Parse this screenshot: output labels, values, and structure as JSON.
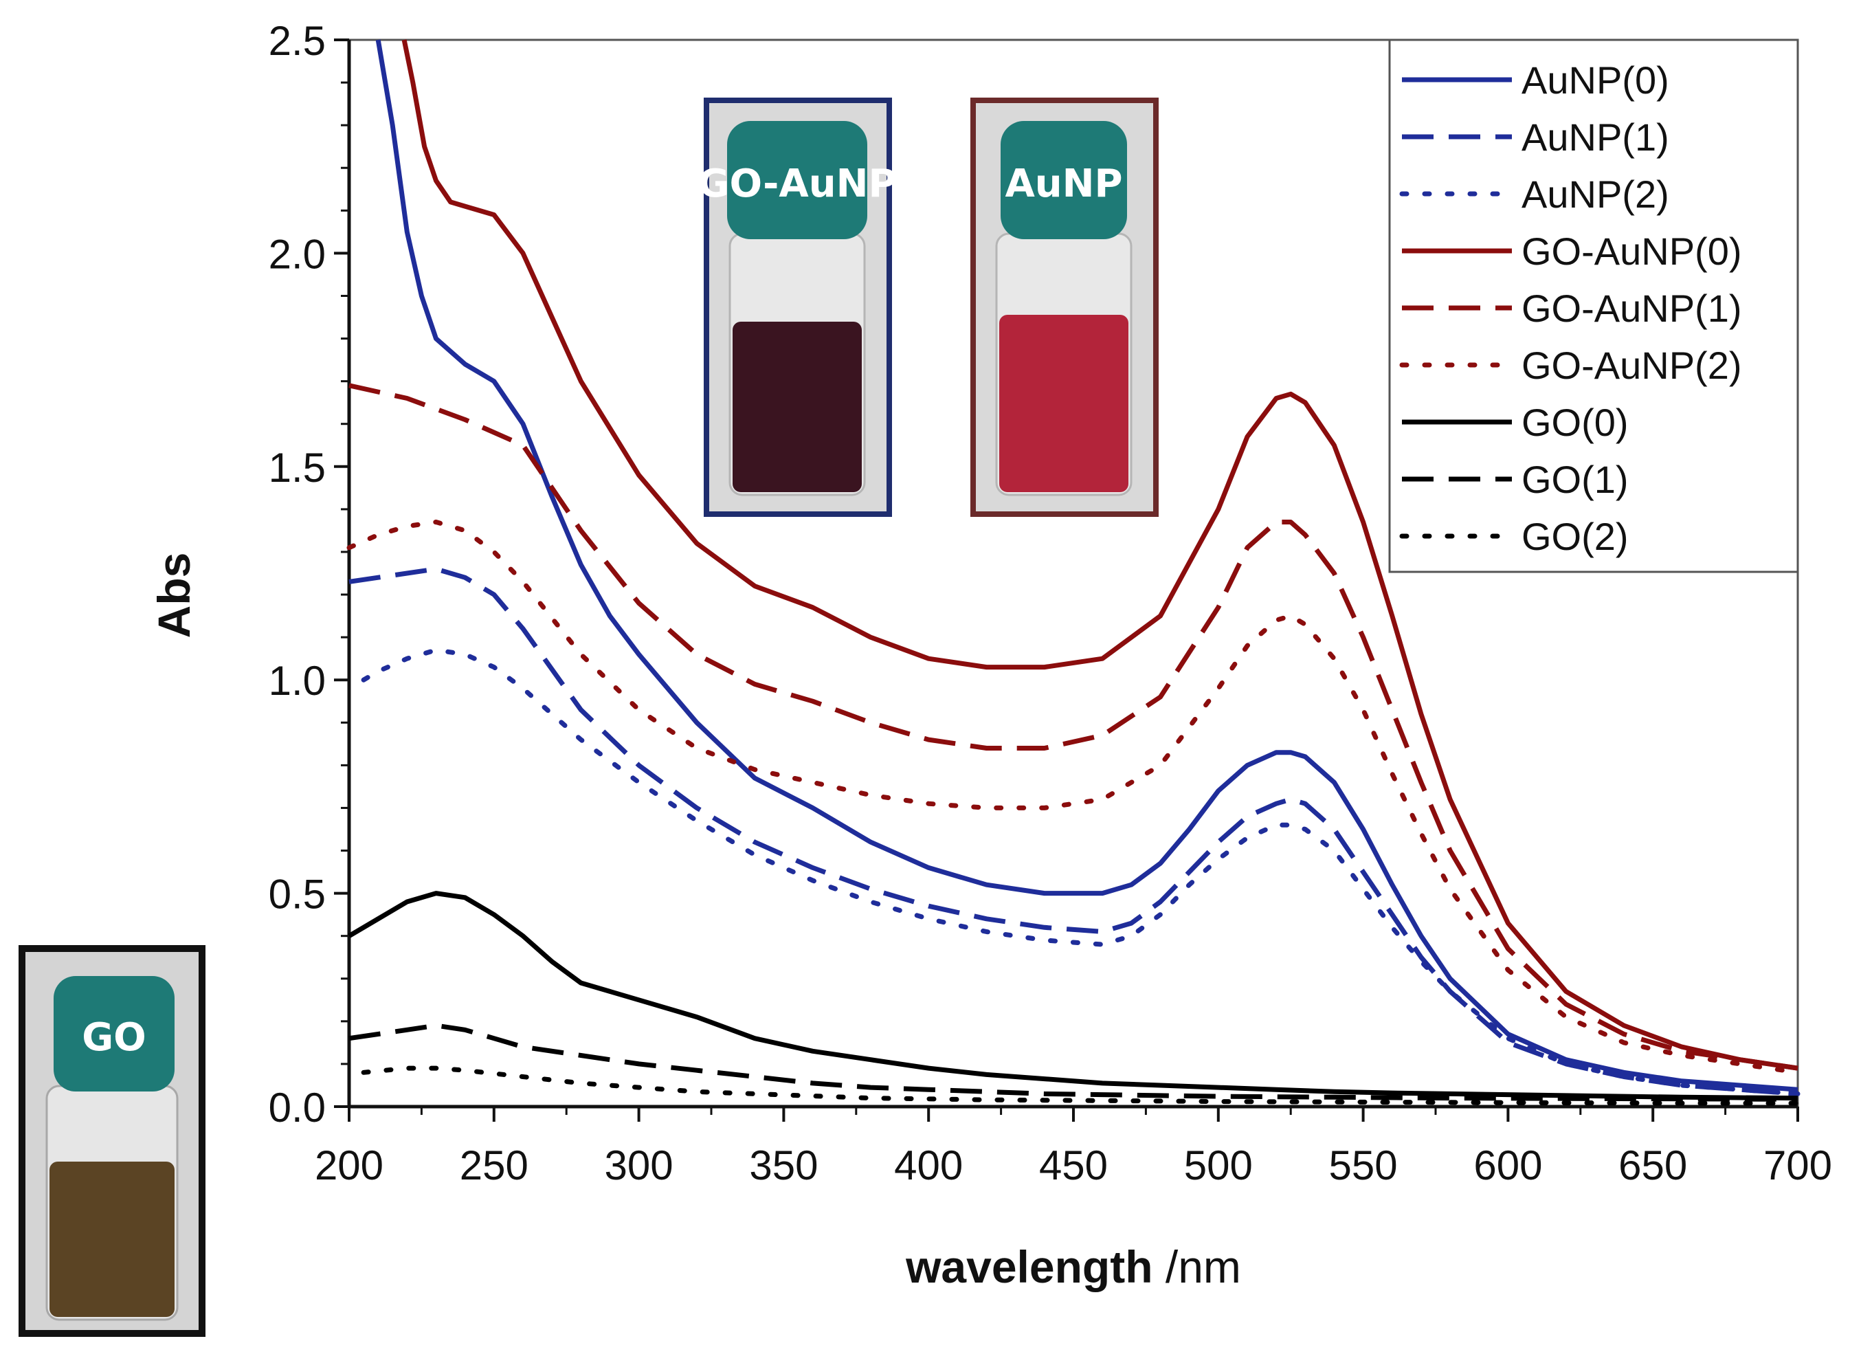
{
  "chart_data": {
    "type": "line",
    "title": "",
    "xlabel_bold": "wavelength",
    "xlabel_unit": " /nm",
    "ylabel": "Abs",
    "xlim": [
      200,
      700
    ],
    "ylim": [
      0,
      2.5
    ],
    "xticks": [
      "200",
      "250",
      "300",
      "350",
      "400",
      "450",
      "500",
      "550",
      "600",
      "650",
      "700"
    ],
    "yticks": [
      "0.0",
      "0.5",
      "1.0",
      "1.5",
      "2.0",
      "2.5"
    ],
    "legend_position": "top-right",
    "colors": {
      "blue": "#1f2d9a",
      "red": "#8b0d0d",
      "black": "#000000"
    },
    "series": [
      {
        "name": "AuNP(0)",
        "color": "#1f2d9a",
        "style": "solid",
        "x": [
          210,
          215,
          220,
          225,
          230,
          240,
          250,
          260,
          270,
          280,
          290,
          300,
          320,
          340,
          360,
          380,
          400,
          420,
          440,
          460,
          470,
          480,
          490,
          500,
          510,
          520,
          525,
          530,
          540,
          550,
          560,
          570,
          580,
          600,
          620,
          640,
          660,
          680,
          700
        ],
        "y": [
          2.5,
          2.3,
          2.05,
          1.9,
          1.8,
          1.74,
          1.7,
          1.6,
          1.43,
          1.27,
          1.15,
          1.06,
          0.9,
          0.77,
          0.7,
          0.62,
          0.56,
          0.52,
          0.5,
          0.5,
          0.52,
          0.57,
          0.65,
          0.74,
          0.8,
          0.83,
          0.83,
          0.82,
          0.76,
          0.65,
          0.52,
          0.4,
          0.3,
          0.17,
          0.11,
          0.08,
          0.06,
          0.05,
          0.04
        ]
      },
      {
        "name": "AuNP(1)",
        "color": "#1f2d9a",
        "style": "dash",
        "x": [
          200,
          210,
          220,
          230,
          240,
          250,
          260,
          280,
          300,
          320,
          340,
          360,
          380,
          400,
          420,
          440,
          460,
          470,
          480,
          490,
          500,
          510,
          520,
          525,
          530,
          540,
          550,
          560,
          570,
          580,
          600,
          620,
          640,
          660,
          680,
          700
        ],
        "y": [
          1.23,
          1.24,
          1.25,
          1.26,
          1.24,
          1.2,
          1.12,
          0.93,
          0.8,
          0.7,
          0.62,
          0.56,
          0.51,
          0.47,
          0.44,
          0.42,
          0.41,
          0.43,
          0.48,
          0.55,
          0.62,
          0.68,
          0.71,
          0.72,
          0.71,
          0.65,
          0.55,
          0.45,
          0.35,
          0.27,
          0.15,
          0.1,
          0.07,
          0.05,
          0.04,
          0.03
        ]
      },
      {
        "name": "AuNP(2)",
        "color": "#1f2d9a",
        "style": "dot",
        "x": [
          205,
          210,
          220,
          230,
          240,
          250,
          260,
          280,
          300,
          320,
          340,
          360,
          380,
          400,
          420,
          440,
          460,
          470,
          480,
          490,
          500,
          510,
          520,
          525,
          530,
          540,
          550,
          560,
          570,
          580,
          600,
          620,
          640,
          660,
          680,
          700
        ],
        "y": [
          1.0,
          1.02,
          1.05,
          1.07,
          1.06,
          1.03,
          0.98,
          0.86,
          0.76,
          0.67,
          0.59,
          0.53,
          0.48,
          0.44,
          0.41,
          0.39,
          0.38,
          0.4,
          0.45,
          0.52,
          0.58,
          0.63,
          0.66,
          0.66,
          0.65,
          0.6,
          0.51,
          0.42,
          0.34,
          0.27,
          0.16,
          0.1,
          0.07,
          0.05,
          0.04,
          0.03
        ]
      },
      {
        "name": "GO-AuNP(0)",
        "color": "#8b0d0d",
        "style": "solid",
        "x": [
          219,
          222,
          226,
          230,
          235,
          240,
          250,
          260,
          270,
          280,
          300,
          320,
          340,
          360,
          380,
          400,
          420,
          440,
          460,
          480,
          500,
          510,
          520,
          525,
          530,
          540,
          550,
          560,
          570,
          580,
          600,
          620,
          640,
          660,
          680,
          700
        ],
        "y": [
          2.5,
          2.4,
          2.25,
          2.17,
          2.12,
          2.11,
          2.09,
          2.0,
          1.85,
          1.7,
          1.48,
          1.32,
          1.22,
          1.17,
          1.1,
          1.05,
          1.03,
          1.03,
          1.05,
          1.15,
          1.4,
          1.57,
          1.66,
          1.67,
          1.65,
          1.55,
          1.37,
          1.15,
          0.92,
          0.72,
          0.43,
          0.27,
          0.19,
          0.14,
          0.11,
          0.09
        ]
      },
      {
        "name": "GO-AuNP(1)",
        "color": "#8b0d0d",
        "style": "dash",
        "x": [
          200,
          220,
          240,
          260,
          280,
          300,
          320,
          340,
          360,
          380,
          400,
          420,
          440,
          460,
          480,
          500,
          510,
          520,
          525,
          530,
          540,
          550,
          560,
          570,
          580,
          600,
          620,
          640,
          660,
          680,
          700
        ],
        "y": [
          1.69,
          1.66,
          1.61,
          1.55,
          1.35,
          1.18,
          1.06,
          0.99,
          0.95,
          0.9,
          0.86,
          0.84,
          0.84,
          0.87,
          0.96,
          1.17,
          1.31,
          1.37,
          1.37,
          1.34,
          1.25,
          1.1,
          0.93,
          0.76,
          0.6,
          0.37,
          0.24,
          0.17,
          0.13,
          0.11,
          0.09
        ]
      },
      {
        "name": "GO-AuNP(2)",
        "color": "#8b0d0d",
        "style": "dot",
        "x": [
          200,
          210,
          220,
          230,
          240,
          250,
          260,
          280,
          300,
          320,
          340,
          360,
          380,
          400,
          420,
          440,
          460,
          480,
          500,
          510,
          520,
          525,
          530,
          540,
          550,
          560,
          570,
          580,
          600,
          620,
          640,
          660,
          680,
          700
        ],
        "y": [
          1.31,
          1.34,
          1.36,
          1.37,
          1.35,
          1.3,
          1.23,
          1.06,
          0.93,
          0.84,
          0.79,
          0.76,
          0.73,
          0.71,
          0.7,
          0.7,
          0.72,
          0.8,
          0.98,
          1.08,
          1.14,
          1.15,
          1.13,
          1.05,
          0.93,
          0.78,
          0.64,
          0.51,
          0.32,
          0.21,
          0.15,
          0.12,
          0.1,
          0.08
        ]
      },
      {
        "name": "GO(0)",
        "color": "#000000",
        "style": "solid",
        "x": [
          200,
          210,
          220,
          230,
          240,
          250,
          260,
          270,
          280,
          290,
          300,
          320,
          340,
          360,
          380,
          400,
          420,
          440,
          460,
          480,
          500,
          520,
          540,
          560,
          580,
          600,
          620,
          640,
          660,
          680,
          700
        ],
        "y": [
          0.4,
          0.44,
          0.48,
          0.5,
          0.49,
          0.45,
          0.4,
          0.34,
          0.29,
          0.27,
          0.25,
          0.21,
          0.16,
          0.13,
          0.11,
          0.09,
          0.075,
          0.065,
          0.055,
          0.05,
          0.045,
          0.04,
          0.035,
          0.032,
          0.03,
          0.028,
          0.026,
          0.024,
          0.022,
          0.021,
          0.02
        ]
      },
      {
        "name": "GO(1)",
        "color": "#000000",
        "style": "dash",
        "x": [
          200,
          210,
          220,
          230,
          240,
          250,
          260,
          280,
          300,
          320,
          340,
          360,
          380,
          400,
          420,
          440,
          460,
          480,
          500,
          540,
          580,
          620,
          660,
          700
        ],
        "y": [
          0.16,
          0.17,
          0.18,
          0.19,
          0.18,
          0.16,
          0.14,
          0.12,
          0.1,
          0.085,
          0.07,
          0.055,
          0.045,
          0.04,
          0.035,
          0.03,
          0.028,
          0.026,
          0.024,
          0.022,
          0.02,
          0.019,
          0.018,
          0.017
        ]
      },
      {
        "name": "GO(2)",
        "color": "#000000",
        "style": "dot",
        "x": [
          205,
          220,
          230,
          240,
          260,
          280,
          300,
          320,
          340,
          360,
          380,
          400,
          420,
          440,
          460,
          480,
          500,
          540,
          580,
          620,
          660,
          700
        ],
        "y": [
          0.08,
          0.09,
          0.09,
          0.085,
          0.07,
          0.055,
          0.045,
          0.035,
          0.03,
          0.025,
          0.02,
          0.018,
          0.016,
          0.015,
          0.014,
          0.013,
          0.012,
          0.011,
          0.01,
          0.009,
          0.008,
          0.008
        ]
      }
    ]
  },
  "insets": {
    "go_auNP_vial": {
      "label": "GO-AuNP",
      "frame_color": "#1f2d6e",
      "liquid_color": "#3a1420"
    },
    "auNP_vial": {
      "label": "AuNP",
      "frame_color": "#6b2a2a",
      "liquid_color": "#b3243a"
    },
    "go_vial": {
      "label": "GO",
      "frame_color": "#111111",
      "liquid_color": "#5b4424"
    }
  }
}
